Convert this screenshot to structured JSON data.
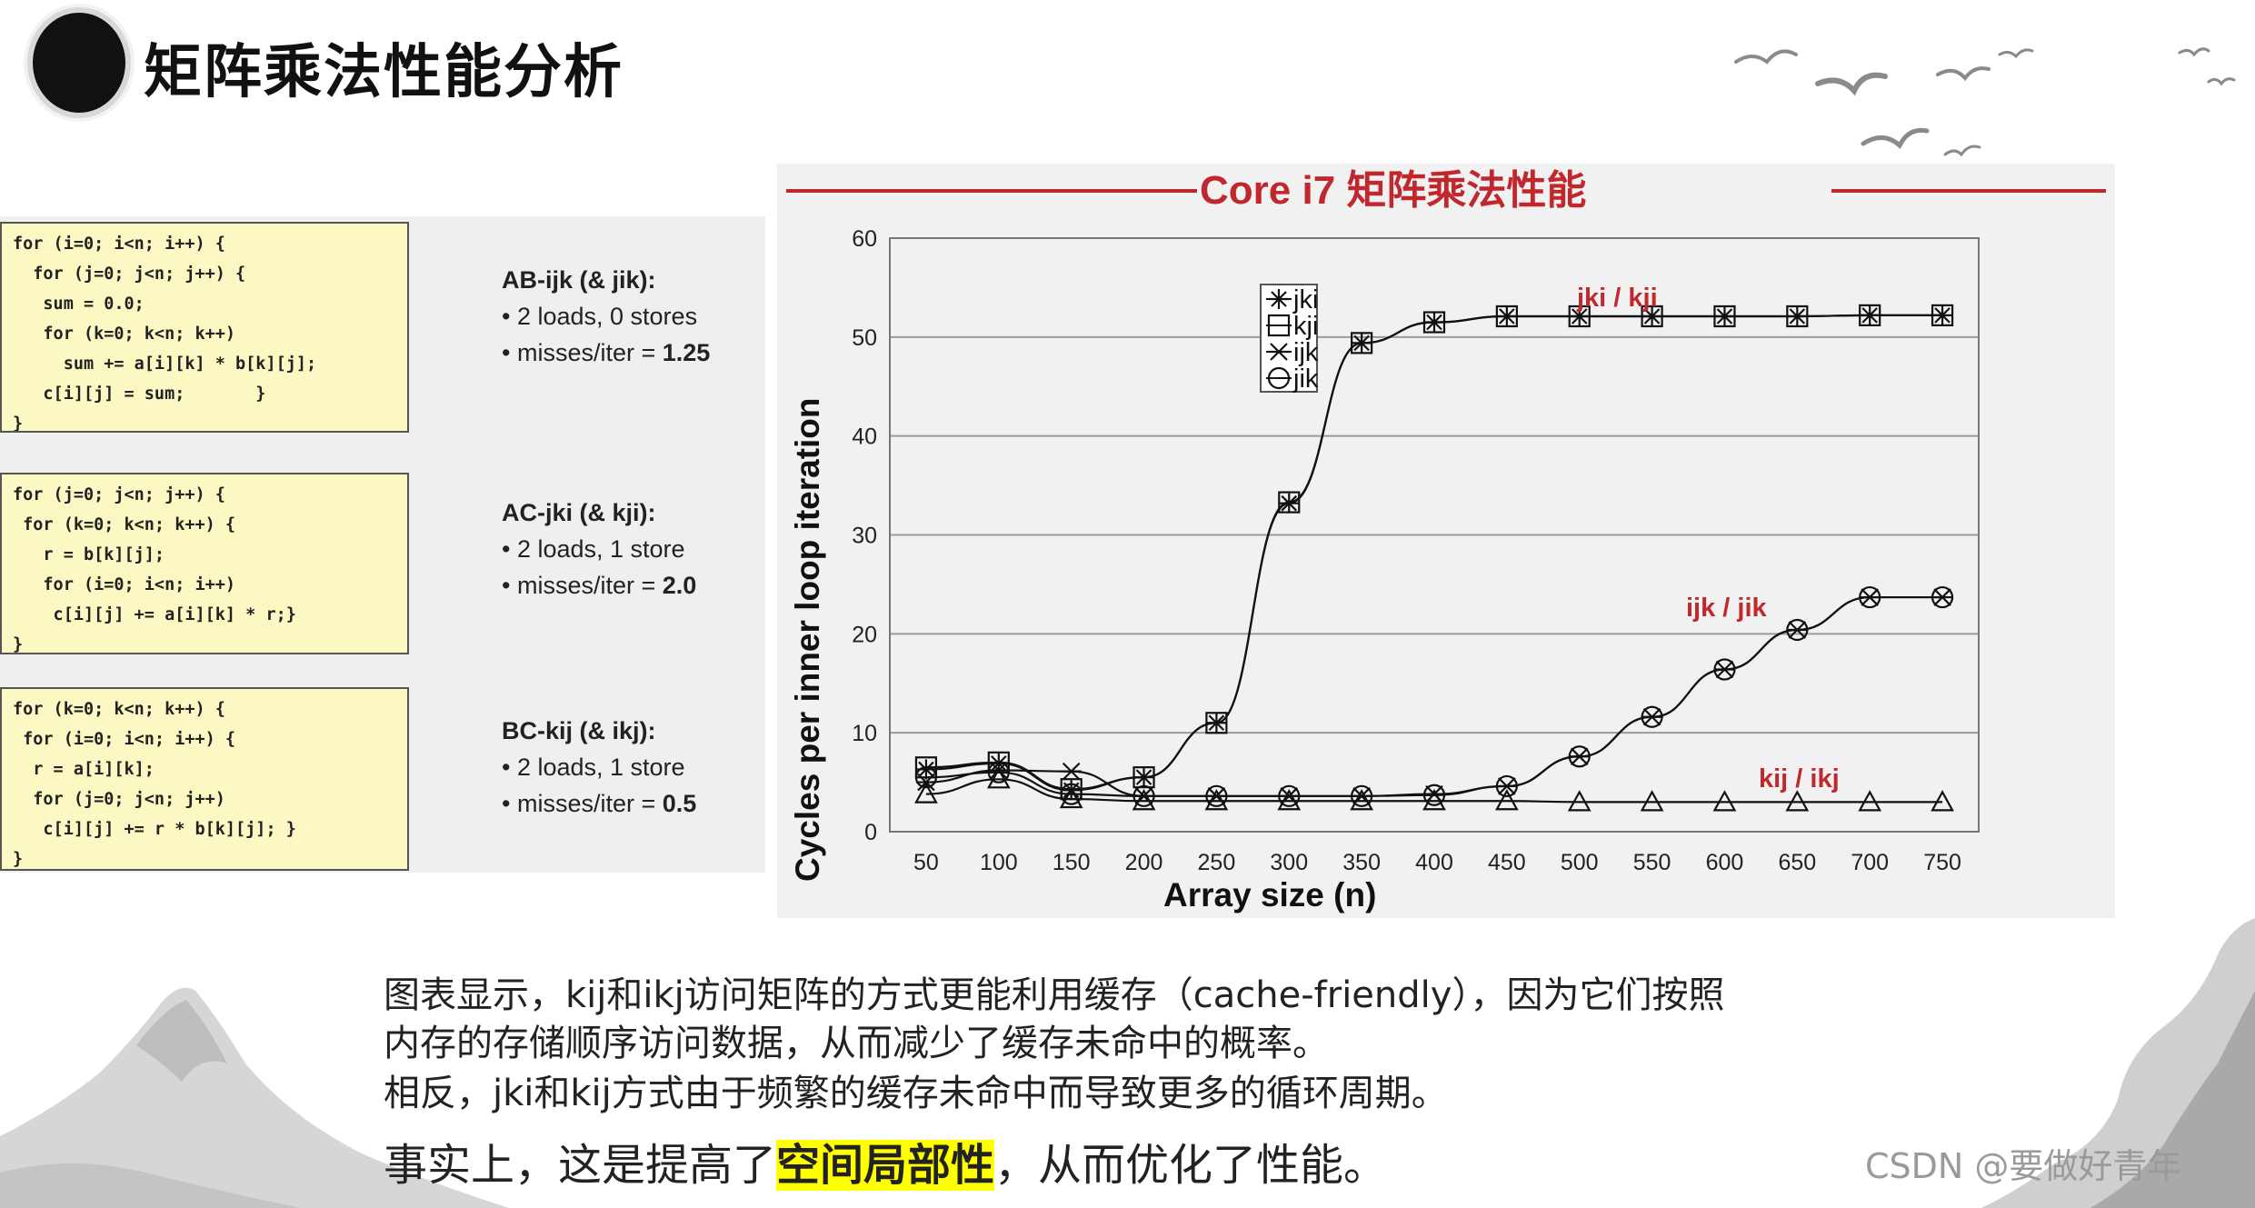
{
  "page": {
    "title": "矩阵乘法性能分析",
    "watermark": "CSDN @要做好青年"
  },
  "code_blocks": [
    {
      "code": "for (i=0; i<n; i++) {\n  for (j=0; j<n; j++) {\n   sum = 0.0;\n   for (k=0; k<n; k++)\n     sum += a[i][k] * b[k][j];\n   c[i][j] = sum;       }\n}",
      "heading": "AB-ijk (& jik):",
      "line1": "• 2 loads, 0 stores",
      "line2_prefix": "• misses/iter = ",
      "line2_value": "1.25"
    },
    {
      "code": "for (j=0; j<n; j++) {\n for (k=0; k<n; k++) {\n   r = b[k][j];\n   for (i=0; i<n; i++)\n    c[i][j] += a[i][k] * r;}\n}",
      "heading": "AC-jki (& kji):",
      "line1": "• 2 loads, 1 store",
      "line2_prefix": "• misses/iter = ",
      "line2_value": "2.0"
    },
    {
      "code": "for (k=0; k<n; k++) {\n for (i=0; i<n; i++) {\n  r = a[i][k];\n  for (j=0; j<n; j++)\n   c[i][j] += r * b[k][j]; }\n}",
      "heading": "BC-kij (& ikj):",
      "line1": "• 2 loads, 1 store",
      "line2_prefix": "• misses/iter = ",
      "line2_value": "0.5"
    }
  ],
  "paragraph": {
    "line1": "图表显示，kij和ikj访问矩阵的方式更能利用缓存（cache-friendly），因为它们按照",
    "line2": "内存的存储顺序访问数据，从而减少了缓存未命中的概率。",
    "line3": "相反，jki和kij方式由于频繁的缓存未命中而导致更多的循环周期。",
    "line4_prefix": "事实上，这是提高了",
    "line4_highlight": "空间局部性",
    "line4_suffix": "，从而优化了性能。"
  },
  "colors": {
    "title_red": "#c0282d",
    "highlight": "#ffff00"
  },
  "chart_data": {
    "type": "line",
    "title": "Core i7 矩阵乘法性能",
    "xlabel": "Array size (n)",
    "ylabel": "Cycles per inner loop iteration",
    "x": [
      50,
      100,
      150,
      200,
      250,
      300,
      350,
      400,
      450,
      500,
      550,
      600,
      650,
      700,
      750
    ],
    "ylim": [
      0,
      60
    ],
    "yticks": [
      0,
      10,
      20,
      30,
      40,
      50,
      60
    ],
    "grid": "horizontal",
    "legend_position": "right",
    "series": [
      {
        "name": "jki",
        "marker": "asterisk",
        "values": [
          6.3,
          6.9,
          4.2,
          5.5,
          11.0,
          33.2,
          49.4,
          51.5,
          52.1,
          52.1,
          52.1,
          52.1,
          52.1,
          52.2,
          52.2
        ]
      },
      {
        "name": "kji",
        "marker": "square",
        "values": [
          6.5,
          7.0,
          4.3,
          5.5,
          11.0,
          33.3,
          49.4,
          51.5,
          52.1,
          52.1,
          52.1,
          52.1,
          52.1,
          52.2,
          52.2
        ]
      },
      {
        "name": "ijk",
        "marker": "x",
        "values": [
          5.0,
          6.2,
          6.1,
          3.6,
          3.6,
          3.6,
          3.6,
          3.8,
          4.6,
          7.6,
          11.6,
          16.4,
          20.4,
          23.7,
          23.7
        ]
      },
      {
        "name": "jik",
        "marker": "circle",
        "values": [
          5.5,
          6.0,
          3.8,
          3.6,
          3.6,
          3.6,
          3.6,
          3.7,
          4.6,
          7.6,
          11.6,
          16.4,
          20.4,
          23.7,
          23.7
        ]
      },
      {
        "name": "",
        "marker": "triangle",
        "values": [
          3.8,
          5.3,
          3.3,
          3.1,
          3.1,
          3.1,
          3.1,
          3.1,
          3.1,
          3.0,
          3.0,
          3.0,
          3.0,
          3.0,
          3.0
        ]
      }
    ],
    "annotations": [
      "jki / kji",
      "ijk / jik",
      "kij / ikj"
    ]
  }
}
